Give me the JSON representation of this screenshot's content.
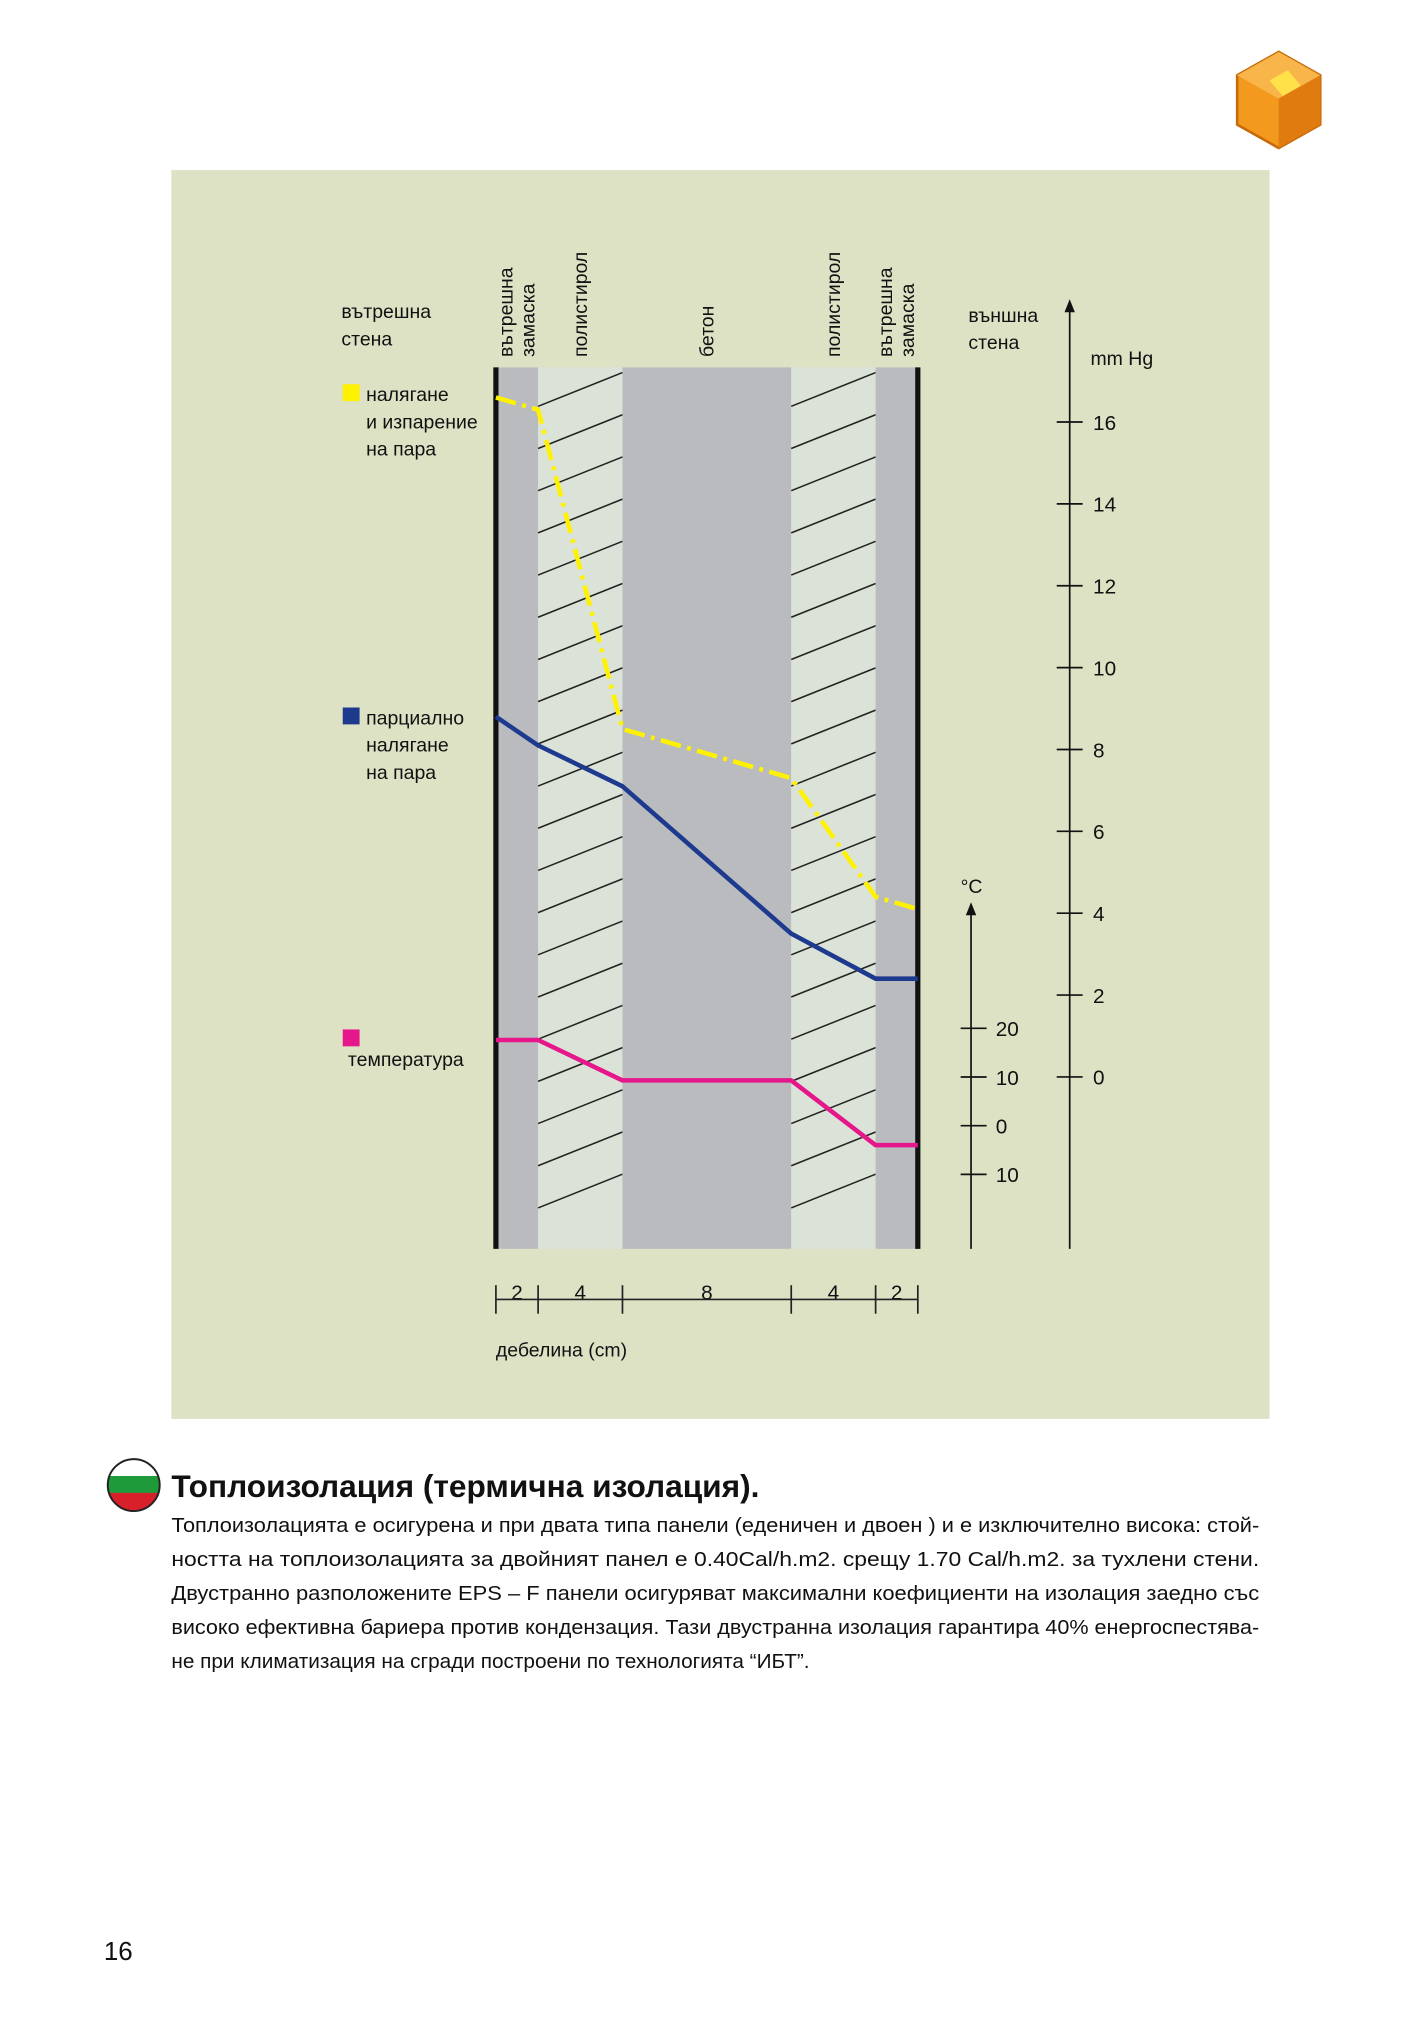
{
  "header": {
    "page_number": "16"
  },
  "chart_data": {
    "type": "line",
    "inner_label": [
      "вътрешна",
      "стена"
    ],
    "outer_label": [
      "външна",
      "стена"
    ],
    "x_label": "дебелина (cm)",
    "y_label": "mm Hg",
    "y2_label": "°C",
    "layers": [
      {
        "label": [
          "вътрешна",
          "замаска"
        ],
        "thickness": 2,
        "hatched": false
      },
      {
        "label": [
          "полистирол"
        ],
        "thickness": 4,
        "hatched": true
      },
      {
        "label": [
          "бетон"
        ],
        "thickness": 8,
        "hatched": false
      },
      {
        "label": [
          "полистирол"
        ],
        "thickness": 4,
        "hatched": true
      },
      {
        "label": [
          "вътрешна",
          "замаска"
        ],
        "thickness": 2,
        "hatched": false
      }
    ],
    "x": [
      0,
      2,
      6,
      14,
      18,
      20
    ],
    "xlim": [
      0,
      20
    ],
    "ylim": [
      -4.2,
      19
    ],
    "yticks": [
      0,
      2,
      4,
      6,
      8,
      10,
      12,
      14,
      16
    ],
    "y2lim": [
      -25.3,
      45.9
    ],
    "y2ticks": [
      {
        "value": -10,
        "label": "10"
      },
      0,
      10,
      20
    ],
    "series": [
      {
        "name": [
          "налягане",
          "и изпарение",
          "на пара"
        ],
        "color": "#fff200",
        "line_style": "dashdot",
        "values": [
          16.6,
          16.3,
          8.5,
          7.3,
          4.4,
          4.1
        ]
      },
      {
        "name": [
          "парциално",
          "налягане",
          "на пара"
        ],
        "color": "#1d3a8e",
        "line_style": "solid",
        "values": [
          8.8,
          8.1,
          7.1,
          3.5,
          2.4,
          2.4
        ]
      },
      {
        "name": [
          "температура"
        ],
        "color": "#e5178b",
        "line_style": "solid",
        "axis": "y2",
        "values": [
          17.6,
          17.6,
          9.3,
          9.3,
          -4,
          -4
        ]
      }
    ]
  },
  "section": {
    "title": "Топлоизолация (термична изолация).",
    "body_lines": [
      "Топлоизолацията е осигурена и при двата типа панели (еденичен и двоен ) и е изключително висока: стой-",
      "ността на топлоизолацията за двойният панел е 0.40Cal/h.m2. срещу 1.70 Cal/h.m2. за тухлени стени.",
      "Двустранно разположените EPS – F панели осигуряват максимални коефициенти на изолация заедно със",
      "високо ефективна бариера против кондензация. Тази двустранна изолация гарантира 40% енергоспестява-",
      "не при климатизация на сгради построени по технологията “ИБТ”."
    ]
  }
}
